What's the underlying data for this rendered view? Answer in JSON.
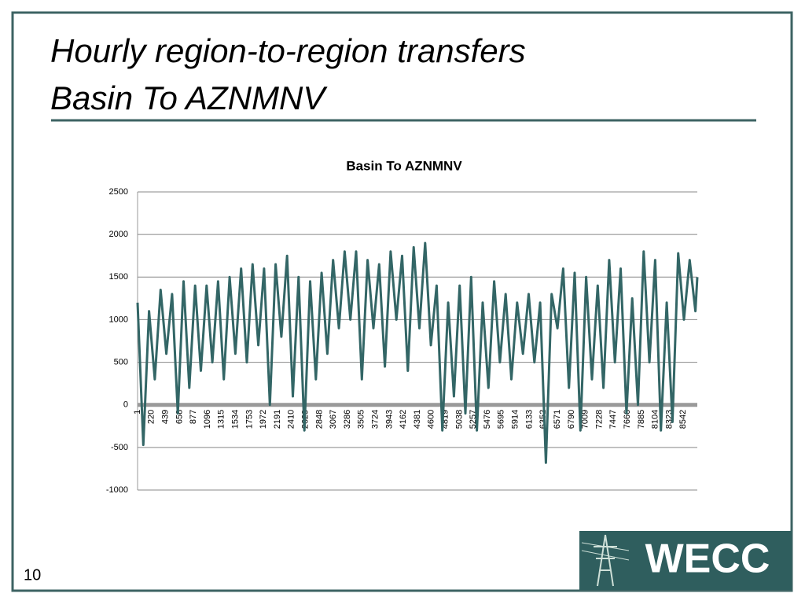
{
  "slide": {
    "title_lines": [
      "Hourly region-to-region transfers",
      "Basin To AZNMNV"
    ],
    "page_number": 10,
    "logo": "WECC"
  },
  "chart_data": {
    "type": "line",
    "title": "Basin To AZNMNV",
    "color": "#336666",
    "grid": true,
    "x": [
      1,
      91,
      181,
      271,
      361,
      451,
      541,
      631,
      721,
      811,
      901,
      991,
      1081,
      1171,
      1261,
      1351,
      1441,
      1531,
      1621,
      1711,
      1801,
      1891,
      1981,
      2071,
      2161,
      2251,
      2341,
      2431,
      2521,
      2611,
      2701,
      2791,
      2881,
      2971,
      3061,
      3151,
      3241,
      3331,
      3421,
      3511,
      3601,
      3691,
      3781,
      3871,
      3961,
      4051,
      4141,
      4231,
      4321,
      4411,
      4501,
      4591,
      4681,
      4771,
      4861,
      4951,
      5041,
      5131,
      5221,
      5311,
      5401,
      5491,
      5581,
      5671,
      5761,
      5851,
      5941,
      6031,
      6121,
      6211,
      6301,
      6391,
      6481,
      6571,
      6661,
      6751,
      6841,
      6931,
      7021,
      7111,
      7201,
      7291,
      7381,
      7471,
      7561,
      7651,
      7741,
      7831,
      7921,
      8011,
      8101,
      8191,
      8281,
      8371,
      8461,
      8551,
      8641,
      8731,
      8760
    ],
    "values": [
      1200,
      -470,
      1100,
      300,
      1350,
      600,
      1300,
      -100,
      1450,
      200,
      1400,
      400,
      1400,
      500,
      1450,
      300,
      1500,
      600,
      1600,
      500,
      1650,
      700,
      1600,
      0,
      1650,
      800,
      1750,
      100,
      1500,
      -300,
      1450,
      300,
      1550,
      600,
      1700,
      900,
      1800,
      1000,
      1800,
      300,
      1700,
      900,
      1650,
      450,
      1800,
      1000,
      1750,
      400,
      1850,
      900,
      1900,
      700,
      1400,
      -300,
      1200,
      100,
      1400,
      -100,
      1500,
      -300,
      1200,
      200,
      1450,
      500,
      1300,
      300,
      1200,
      600,
      1300,
      500,
      1200,
      -680,
      1300,
      900,
      1600,
      200,
      1550,
      -300,
      1500,
      300,
      1400,
      200,
      1700,
      500,
      1600,
      -100,
      1250,
      0,
      1800,
      500,
      1700,
      -300,
      1200,
      -200,
      1780,
      1000,
      1700,
      1100,
      1500
    ],
    "xlim": [
      1,
      8760
    ],
    "xticks": [
      1,
      220,
      439,
      658,
      877,
      1096,
      1315,
      1534,
      1753,
      1972,
      2191,
      2410,
      2629,
      2848,
      3067,
      3286,
      3505,
      3724,
      3943,
      4162,
      4381,
      4600,
      4819,
      5038,
      5257,
      5476,
      5695,
      5914,
      6133,
      6352,
      6571,
      6790,
      7009,
      7228,
      7447,
      7666,
      7885,
      8104,
      8323,
      8542
    ],
    "ylim": [
      -1000,
      2500
    ],
    "yticks": [
      -1000,
      -500,
      0,
      500,
      1000,
      1500,
      2000,
      2500
    ]
  }
}
